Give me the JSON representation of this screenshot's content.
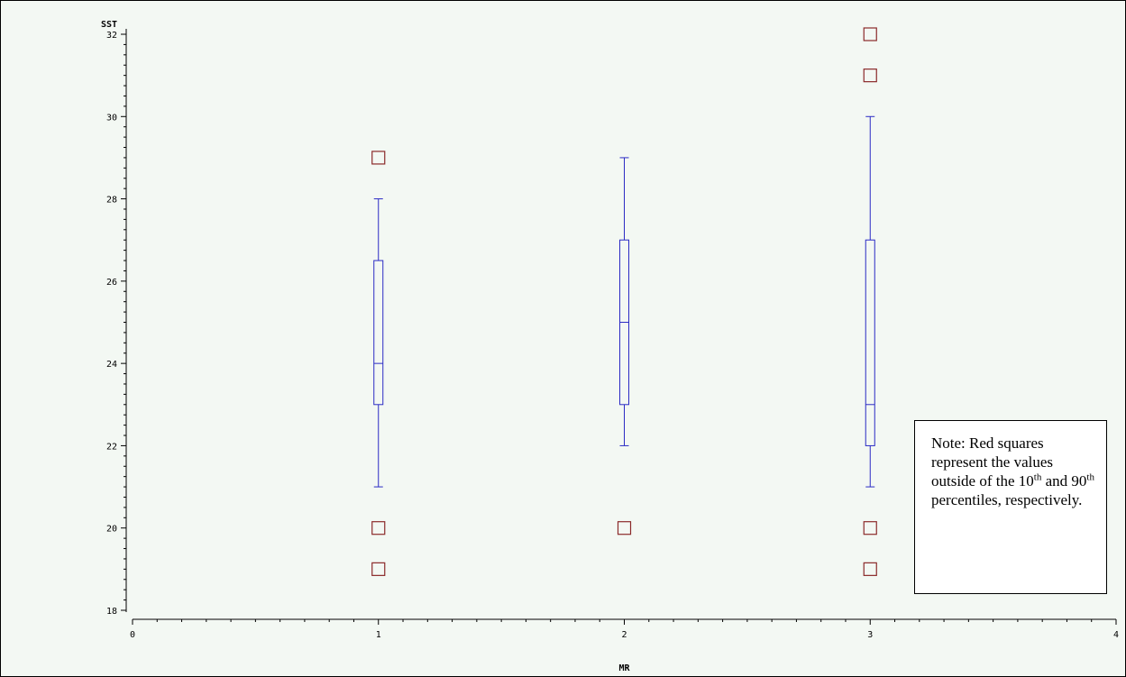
{
  "chart_data": {
    "type": "box",
    "xlabel": "MR",
    "ylabel": "SST",
    "xlim": [
      0,
      4
    ],
    "ylim": [
      18,
      32
    ],
    "x_ticks": [
      "0",
      "1",
      "2",
      "3",
      "4"
    ],
    "y_ticks": [
      "18",
      "20",
      "22",
      "24",
      "26",
      "28",
      "30",
      "32"
    ],
    "boxes": [
      {
        "x": 1,
        "whisker_low": 21,
        "q1": 23,
        "median": 24,
        "q3": 26.5,
        "whisker_high": 28,
        "outliers": [
          29,
          20,
          19
        ]
      },
      {
        "x": 2,
        "whisker_low": 22,
        "q1": 23,
        "median": 25,
        "q3": 27,
        "whisker_high": 29,
        "outliers": [
          20
        ]
      },
      {
        "x": 3,
        "whisker_low": 21,
        "q1": 22,
        "median": 23,
        "q3": 27,
        "whisker_high": 30,
        "outliers": [
          32,
          31,
          20,
          19
        ]
      }
    ],
    "box_color": "#2b2bc4",
    "outlier_color": "#8b2a2a",
    "background": "#f3f8f3"
  },
  "note": {
    "prefix": "Note:  Red squares represent the values outside of the 10",
    "sup1": "th",
    "mid": " and 90",
    "sup2": "th",
    "suffix": " percentiles, respectively."
  }
}
